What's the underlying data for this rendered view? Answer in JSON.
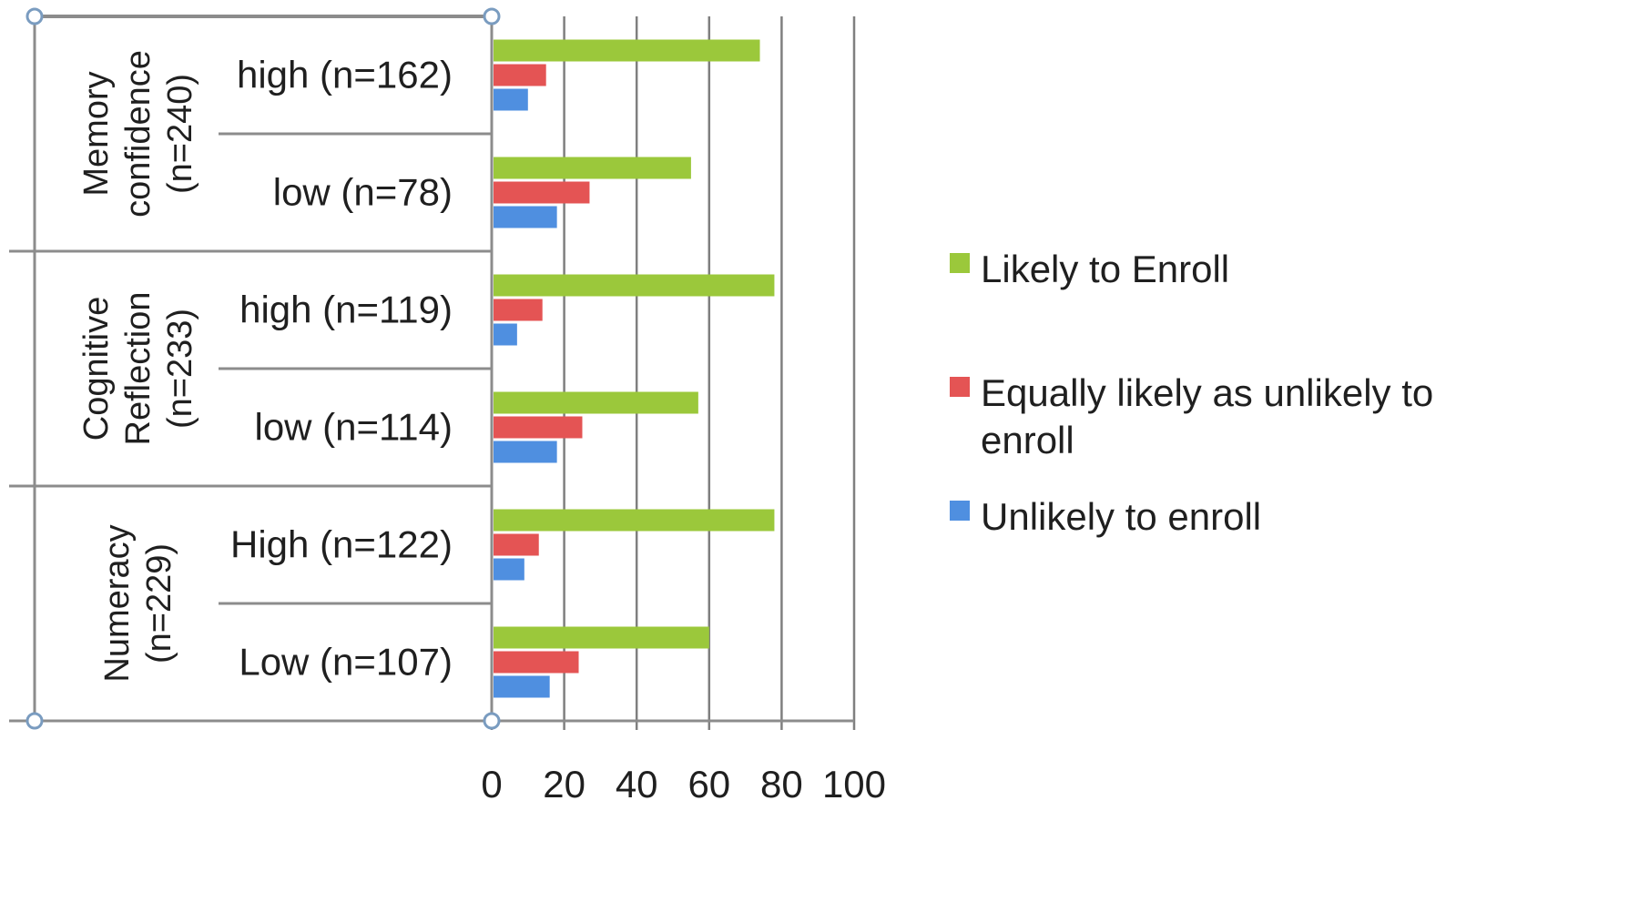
{
  "colors": {
    "likely": "#9BC83B",
    "equal": "#E45454",
    "unlikely": "#4F8FE0",
    "grid": "#7f7f7f",
    "frame": "#8c8c8c"
  },
  "chart_data": {
    "type": "bar",
    "orientation": "horizontal",
    "title": "",
    "xlabel": "",
    "ylabel": "",
    "xlim": [
      0,
      100
    ],
    "x_ticks": [
      "0",
      "20",
      "40",
      "60",
      "80",
      "100"
    ],
    "grid": true,
    "legend_position": "right",
    "groups": [
      {
        "label_lines": [
          "Memory",
          "confidence",
          "(n=240)"
        ],
        "categories": [
          "high (n=162)",
          "low (n=78)"
        ]
      },
      {
        "label_lines": [
          "Cognitive",
          "Reflection",
          "(n=233)"
        ],
        "categories": [
          "high (n=119)",
          "low (n=114)"
        ]
      },
      {
        "label_lines": [
          "Numeracy",
          "(n=229)"
        ],
        "categories": [
          "High (n=122)",
          "Low (n=107)"
        ]
      }
    ],
    "categories": [
      "high (n=162)",
      "low (n=78)",
      "high (n=119)",
      "low (n=114)",
      "High (n=122)",
      "Low (n=107)"
    ],
    "series": [
      {
        "name": "Likely to Enroll",
        "color_key": "likely",
        "values": [
          74,
          55,
          78,
          57,
          78,
          60
        ]
      },
      {
        "name": "Equally likely as unlikely to enroll",
        "legend_lines": [
          "Equally likely as unlikely to",
          "enroll"
        ],
        "color_key": "equal",
        "values": [
          15,
          27,
          14,
          25,
          13,
          24
        ]
      },
      {
        "name": "Unlikely to enroll",
        "color_key": "unlikely",
        "values": [
          10,
          18,
          7,
          18,
          9,
          16
        ]
      }
    ]
  }
}
